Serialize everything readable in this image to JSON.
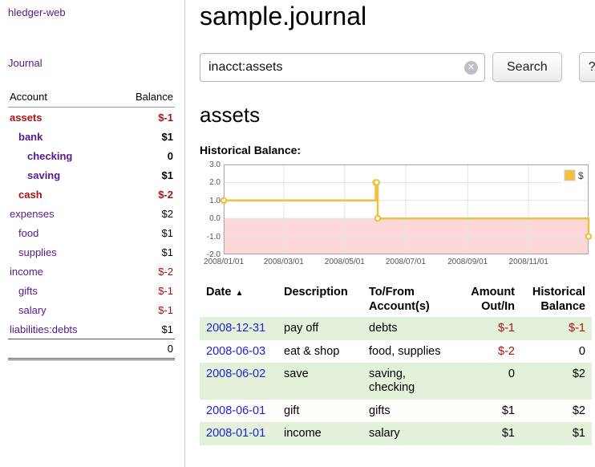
{
  "app": {
    "title": "hledger-web",
    "nav_journal": "Journal"
  },
  "sidebar": {
    "header": {
      "account": "Account",
      "balance": "Balance"
    },
    "accounts": [
      {
        "name": "assets",
        "balance": "$-1",
        "indent": 0,
        "bold": true,
        "name_negative": true,
        "balance_negative": true
      },
      {
        "name": "bank",
        "balance": "$1",
        "indent": 1,
        "bold": true,
        "name_negative": false,
        "balance_negative": false
      },
      {
        "name": "checking",
        "balance": "0",
        "indent": 2,
        "bold": true,
        "name_negative": false,
        "balance_negative": false
      },
      {
        "name": "saving",
        "balance": "$1",
        "indent": 2,
        "bold": true,
        "name_negative": false,
        "balance_negative": false
      },
      {
        "name": "cash",
        "balance": "$-2",
        "indent": 1,
        "bold": true,
        "name_negative": true,
        "balance_negative": true
      },
      {
        "name": "expenses",
        "balance": "$2",
        "indent": 0,
        "bold": false,
        "name_negative": false,
        "balance_negative": false
      },
      {
        "name": "food",
        "balance": "$1",
        "indent": 1,
        "bold": false,
        "name_negative": false,
        "balance_negative": false
      },
      {
        "name": "supplies",
        "balance": "$1",
        "indent": 1,
        "bold": false,
        "name_negative": false,
        "balance_negative": false
      },
      {
        "name": "income",
        "balance": "$-2",
        "indent": 0,
        "bold": false,
        "name_negative": false,
        "balance_negative": true
      },
      {
        "name": "gifts",
        "balance": "$-1",
        "indent": 1,
        "bold": false,
        "name_negative": false,
        "balance_negative": true
      },
      {
        "name": "salary",
        "balance": "$-1",
        "indent": 1,
        "bold": false,
        "name_negative": false,
        "balance_negative": true
      },
      {
        "name": "liabilities:debts",
        "balance": "$1",
        "indent": 0,
        "bold": false,
        "name_negative": false,
        "balance_negative": false
      }
    ],
    "total": "0"
  },
  "main": {
    "title": "sample.journal",
    "search": {
      "value": "inacct:assets",
      "clear_glyph": "✕",
      "button": "Search",
      "help": "?"
    },
    "account_title": "assets",
    "chart_label": "Historical Balance:"
  },
  "chart_data": {
    "type": "line",
    "title": "Historical Balance:",
    "series": [
      {
        "name": "$",
        "color": "#edc240",
        "style": "step-after",
        "points": [
          [
            "2008-01-01",
            1
          ],
          [
            "2008-06-01",
            2
          ],
          [
            "2008-06-02",
            2
          ],
          [
            "2008-06-03",
            0
          ],
          [
            "2008-12-31",
            -1
          ]
        ]
      }
    ],
    "xlim": [
      "2008-01-01",
      "2008-12-31"
    ],
    "ylim": [
      -2,
      3
    ],
    "x_ticks": [
      "2008/01/01",
      "2008/03/01",
      "2008/05/01",
      "2008/07/01",
      "2008/09/01",
      "2008/11/01"
    ],
    "y_ticks": [
      "3.0",
      "2.0",
      "1.0",
      "0.0",
      "-1.0",
      "-2.0"
    ],
    "grid": true,
    "legend_position": "top-right",
    "negative_region_color": "#fbd7d7"
  },
  "register": {
    "columns": [
      {
        "lines": [
          "Date"
        ],
        "align": "left",
        "sort": "▲"
      },
      {
        "lines": [
          "Description"
        ],
        "align": "left"
      },
      {
        "lines": [
          "To/From",
          "Account(s)"
        ],
        "align": "left"
      },
      {
        "lines": [
          "Amount",
          "Out/In"
        ],
        "align": "right"
      },
      {
        "lines": [
          "Historical",
          "Balance"
        ],
        "align": "right"
      }
    ],
    "rows": [
      {
        "date": "2008-12-31",
        "description": "pay off",
        "accounts": [
          "debts"
        ],
        "amount": "$-1",
        "amount_negative": true,
        "balance": "$-1",
        "balance_negative": true
      },
      {
        "date": "2008-06-03",
        "description": "eat & shop",
        "accounts": [
          "food",
          "supplies"
        ],
        "amount": "$-2",
        "amount_negative": true,
        "balance": "0",
        "balance_negative": false
      },
      {
        "date": "2008-06-02",
        "description": "save",
        "accounts": [
          "saving",
          "checking"
        ],
        "amount": "0",
        "amount_negative": false,
        "balance": "$2",
        "balance_negative": false
      },
      {
        "date": "2008-06-01",
        "description": "gift",
        "accounts": [
          "gifts"
        ],
        "amount": "$1",
        "amount_negative": false,
        "balance": "$2",
        "balance_negative": false
      },
      {
        "date": "2008-01-01",
        "description": "income",
        "accounts": [
          "salary"
        ],
        "amount": "$1",
        "amount_negative": false,
        "balance": "$1",
        "balance_negative": false
      }
    ]
  },
  "colors": {
    "link_purple": "#551a8b",
    "link_blue": "#2222cc",
    "negative_red": "#a81414",
    "row_green": "#e4f1da",
    "chart_line": "#edc240",
    "chart_negative_bg": "#fbd7d7"
  }
}
